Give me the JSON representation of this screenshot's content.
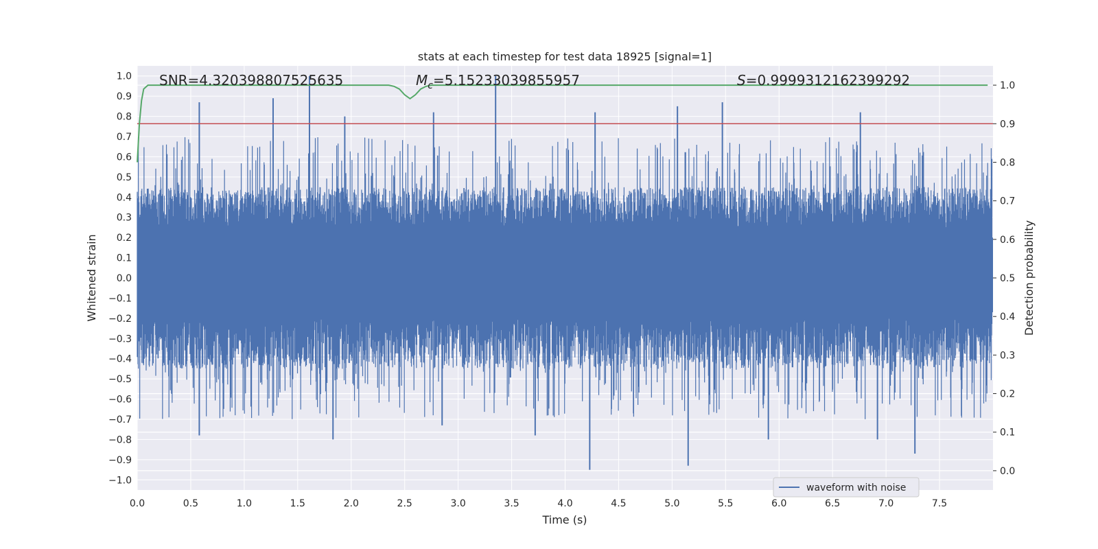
{
  "chart_data": {
    "type": "line",
    "title": "stats at each timestep for test data 18925 [signal=1]",
    "xlabel": "Time (s)",
    "ylabel": "Whitened strain",
    "y2label": "Detection probability",
    "xlim": [
      0,
      8
    ],
    "ylim": [
      -1.05,
      1.05
    ],
    "y2lim": [
      -0.05,
      1.05
    ],
    "x_ticks": [
      "0.0",
      "0.5",
      "1.0",
      "1.5",
      "2.0",
      "2.5",
      "3.0",
      "3.5",
      "4.0",
      "4.5",
      "5.0",
      "5.5",
      "6.0",
      "6.5",
      "7.0",
      "7.5"
    ],
    "y_ticks": [
      "1.0",
      "0.9",
      "0.8",
      "0.7",
      "0.6",
      "0.5",
      "0.4",
      "0.3",
      "0.2",
      "0.1",
      "0.0",
      "-0.1",
      "-0.2",
      "-0.3",
      "-0.4",
      "-0.5",
      "-0.6",
      "-0.7",
      "-0.8",
      "-0.9",
      "-1.0"
    ],
    "y2_ticks": [
      "1.0",
      "0.9",
      "0.8",
      "0.7",
      "0.6",
      "0.5",
      "0.4",
      "0.3",
      "0.2",
      "0.1",
      "0.0"
    ],
    "grid": true,
    "legend": {
      "entries": [
        "waveform with noise"
      ],
      "placement": "lower-right"
    },
    "annotations": {
      "snr": "SNR=4.320398807525635",
      "mc_symbol": "M",
      "mc_sub": "c",
      "mc_value": "=5.15233039855957",
      "s_symbol": "S",
      "s_value": "=0.9999312162399292"
    },
    "series": [
      {
        "name": "waveform with noise",
        "axis": "left",
        "color": "#4c72b0",
        "description_range": [
          -0.95,
          1.0
        ],
        "peaks": [
          {
            "x": 0.58,
            "y": 0.87
          },
          {
            "x": 1.27,
            "y": 0.89
          },
          {
            "x": 1.61,
            "y": 1.0
          },
          {
            "x": 1.94,
            "y": 0.8
          },
          {
            "x": 2.77,
            "y": 0.82
          },
          {
            "x": 3.35,
            "y": 1.0
          },
          {
            "x": 4.28,
            "y": 0.82
          },
          {
            "x": 5.05,
            "y": 0.85
          },
          {
            "x": 5.47,
            "y": 0.87
          },
          {
            "x": 6.76,
            "y": 0.82
          }
        ],
        "troughs": [
          {
            "x": 0.58,
            "y": -0.78
          },
          {
            "x": 1.83,
            "y": -0.8
          },
          {
            "x": 2.85,
            "y": -0.73
          },
          {
            "x": 3.72,
            "y": -0.78
          },
          {
            "x": 4.23,
            "y": -0.95
          },
          {
            "x": 5.15,
            "y": -0.93
          },
          {
            "x": 5.9,
            "y": -0.8
          },
          {
            "x": 7.27,
            "y": -0.87
          },
          {
            "x": 6.92,
            "y": -0.8
          }
        ]
      },
      {
        "name": "",
        "axis": "right",
        "color": "#55a868",
        "x": [
          0.0,
          0.02,
          0.04,
          0.06,
          0.1,
          0.15,
          2.35,
          2.4,
          2.45,
          2.5,
          2.55,
          2.6,
          2.65,
          2.7,
          2.75,
          7.95
        ],
        "y": [
          0.8,
          0.9,
          0.96,
          0.99,
          1.0,
          1.0,
          1.0,
          0.997,
          0.99,
          0.975,
          0.965,
          0.975,
          0.99,
          0.997,
          1.0,
          1.0
        ]
      }
    ],
    "threshold": {
      "axis": "right",
      "value": 0.9,
      "color": "#c44e52"
    }
  }
}
